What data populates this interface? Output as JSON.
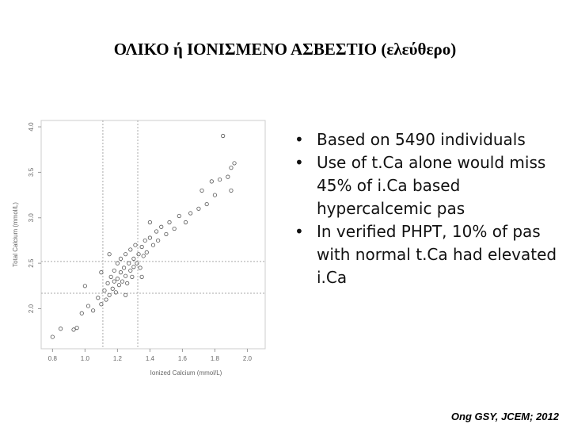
{
  "title": "ΟΛΙΚΟ ή ΙΟΝΙΣΜΕΝΟ ΑΣΒΕΣΤΙΟ (ελεύθερο)",
  "chart_data": {
    "type": "scatter",
    "x_label": "Ionized Calcium (mmol/L)",
    "y_label": "Total Calcium (mmol/L)",
    "x": [
      0.8,
      0.85,
      0.93,
      0.95,
      0.98,
      1.02,
      1.05,
      1.08,
      1.1,
      1.12,
      1.13,
      1.14,
      1.15,
      1.16,
      1.17,
      1.18,
      1.18,
      1.19,
      1.2,
      1.2,
      1.21,
      1.22,
      1.22,
      1.23,
      1.24,
      1.25,
      1.25,
      1.26,
      1.27,
      1.28,
      1.28,
      1.29,
      1.3,
      1.3,
      1.31,
      1.32,
      1.33,
      1.34,
      1.35,
      1.36,
      1.37,
      1.38,
      1.4,
      1.42,
      1.44,
      1.45,
      1.47,
      1.5,
      1.52,
      1.55,
      1.58,
      1.62,
      1.65,
      1.7,
      1.75,
      1.72,
      1.8,
      1.78,
      1.83,
      1.88,
      1.9,
      1.9,
      1.92,
      1.85,
      1.1,
      1.15,
      1.0,
      1.25,
      1.35,
      1.4
    ],
    "values": [
      1.69,
      1.78,
      1.77,
      1.79,
      1.95,
      2.03,
      1.98,
      2.12,
      2.05,
      2.2,
      2.1,
      2.28,
      2.15,
      2.35,
      2.22,
      2.3,
      2.42,
      2.18,
      2.33,
      2.5,
      2.26,
      2.4,
      2.55,
      2.3,
      2.45,
      2.36,
      2.6,
      2.28,
      2.5,
      2.42,
      2.65,
      2.35,
      2.55,
      2.46,
      2.7,
      2.5,
      2.6,
      2.45,
      2.68,
      2.58,
      2.75,
      2.62,
      2.78,
      2.7,
      2.85,
      2.75,
      2.9,
      2.82,
      2.95,
      2.88,
      3.02,
      2.95,
      3.05,
      3.1,
      3.15,
      3.3,
      3.25,
      3.4,
      3.42,
      3.45,
      3.3,
      3.55,
      3.6,
      3.9,
      2.4,
      2.6,
      2.25,
      2.15,
      2.35,
      2.95
    ],
    "color": "#555555",
    "xlim": [
      0.73,
      2.11
    ],
    "ylim": [
      1.56,
      4.07
    ],
    "xticks": [
      0.8,
      {
        "value": 1,
        "label": "1.0"
      },
      1.2,
      1.4,
      1.6,
      1.8,
      {
        "value": 2,
        "label": "2.0"
      }
    ],
    "yticks": [
      {
        "value": 2,
        "label": "2.0"
      },
      2.5,
      {
        "value": 3,
        "label": "3.0"
      },
      3.5,
      {
        "value": 4,
        "label": "4.0"
      }
    ],
    "reference_lines": {
      "x": [
        1.11,
        1.325
      ],
      "y": [
        2.17,
        2.52
      ]
    }
  },
  "bullets": [
    "Based on 5490 individuals",
    "Use of t.Ca alone would miss 45% of i.Ca based hypercalcemic pas",
    "In verified PHPT, 10% of pas with normal t.Ca had elevated i.Ca"
  ],
  "citation": "Ong GSY, JCEM; 2012"
}
